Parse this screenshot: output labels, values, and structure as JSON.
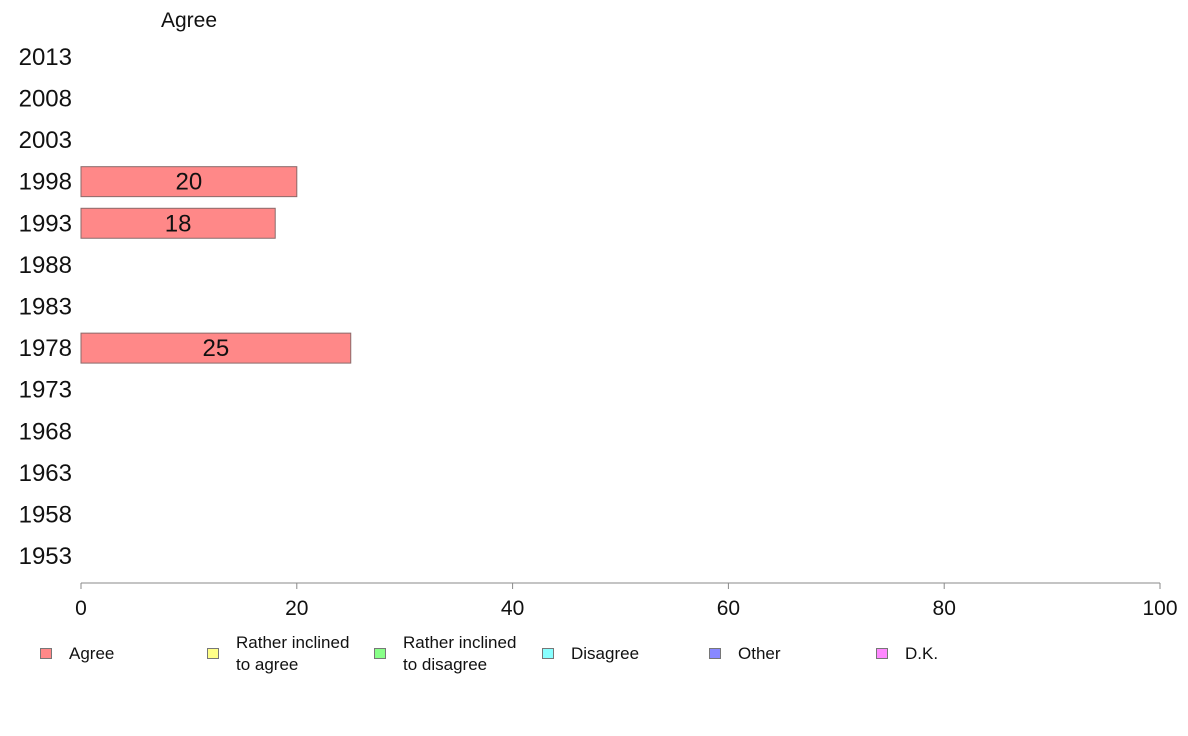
{
  "chart_data": {
    "type": "bar",
    "orientation": "horizontal",
    "title": "Agree",
    "categories": [
      "2013",
      "2008",
      "2003",
      "1998",
      "1993",
      "1988",
      "1983",
      "1978",
      "1973",
      "1968",
      "1963",
      "1958",
      "1953"
    ],
    "series": [
      {
        "name": "Agree",
        "color": "#ff8888",
        "values": [
          null,
          null,
          null,
          20,
          18,
          null,
          null,
          25,
          null,
          null,
          null,
          null,
          null
        ]
      }
    ],
    "xlim": [
      0,
      100
    ],
    "xticks": [
      "0",
      "20",
      "40",
      "60",
      "80",
      "100"
    ],
    "grid": false,
    "legend_position": "bottom",
    "legend": [
      {
        "label": "Agree",
        "color": "#ff8888"
      },
      {
        "label": "Rather inclined\nto agree",
        "color": "#ffff88"
      },
      {
        "label": "Rather inclined\nto disagree",
        "color": "#88ff88"
      },
      {
        "label": "Disagree",
        "color": "#88ffff"
      },
      {
        "label": "Other",
        "color": "#8888ff"
      },
      {
        "label": "D.K.",
        "color": "#ff88ff"
      }
    ]
  }
}
